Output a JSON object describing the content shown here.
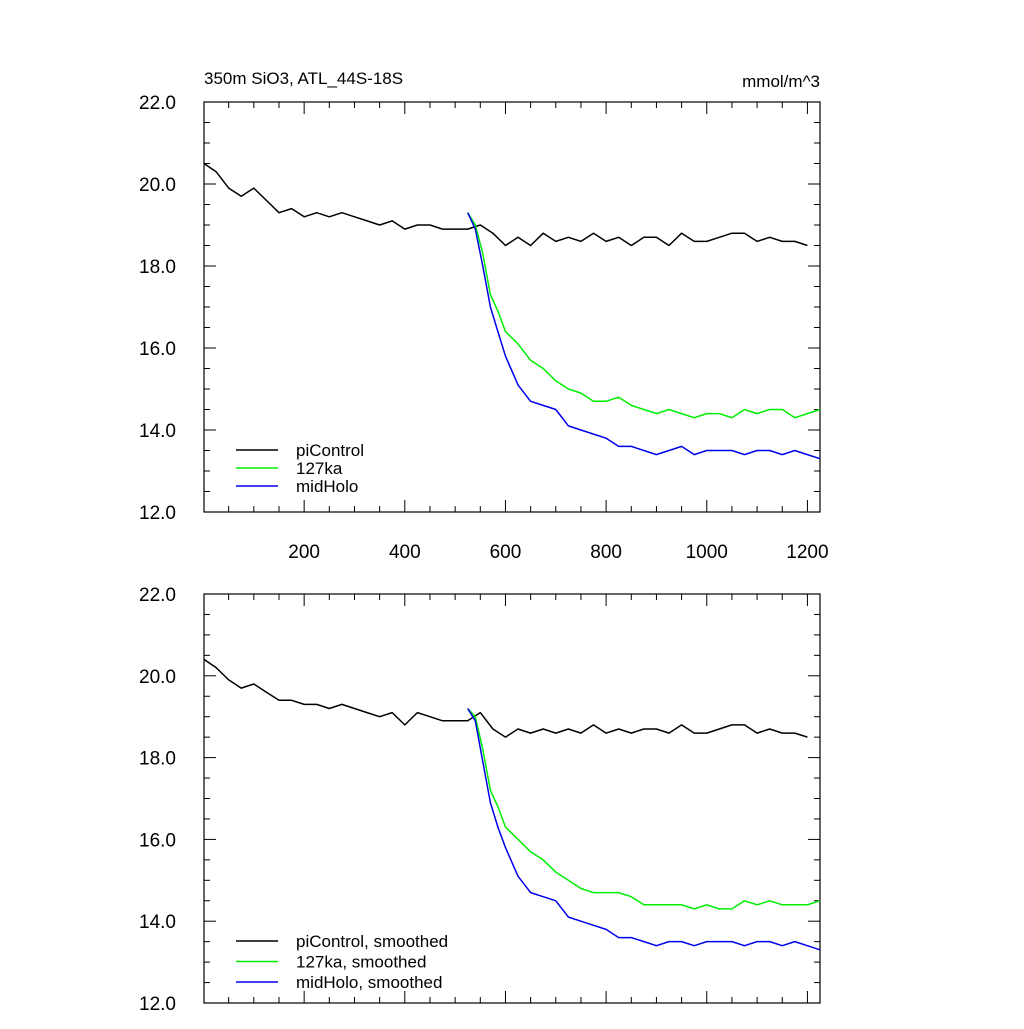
{
  "header": {
    "title": "350m SiO3, ATL_44S-18S",
    "units": "mmol/m^3"
  },
  "colors": {
    "piControl": "#000000",
    "127ka": "#00ee00",
    "midHolo": "#0000ee"
  },
  "chart_data": [
    {
      "type": "line",
      "title": "350m SiO3, ATL_44S-18S",
      "units": "mmol/m^3",
      "xlim": [
        1,
        1225
      ],
      "ylim": [
        12,
        22
      ],
      "x_ticks": [
        200,
        400,
        600,
        800,
        1000,
        1200
      ],
      "x_tick_labels": [
        "200",
        "400",
        "600",
        "800",
        "1000",
        "1200"
      ],
      "y_ticks": [
        12,
        14,
        16,
        18,
        20,
        22
      ],
      "y_tick_labels": [
        "12.0",
        "14.0",
        "16.0",
        "18.0",
        "20.0",
        "22.0"
      ],
      "grid": false,
      "legend_position": "bottom-left",
      "series": [
        {
          "name": "piControl",
          "color": "#000000",
          "x": [
            1,
            25,
            50,
            75,
            100,
            125,
            150,
            175,
            200,
            225,
            250,
            275,
            300,
            325,
            350,
            375,
            400,
            425,
            450,
            475,
            500,
            525,
            550,
            575,
            600,
            625,
            650,
            675,
            700,
            725,
            750,
            775,
            800,
            825,
            850,
            875,
            900,
            925,
            950,
            975,
            1000,
            1025,
            1050,
            1075,
            1100,
            1125,
            1150,
            1175,
            1200
          ],
          "y": [
            20.5,
            20.3,
            19.9,
            19.7,
            19.9,
            19.6,
            19.3,
            19.4,
            19.2,
            19.3,
            19.2,
            19.3,
            19.2,
            19.1,
            19.0,
            19.1,
            18.9,
            19.0,
            19.0,
            18.9,
            18.9,
            18.9,
            19.0,
            18.8,
            18.5,
            18.7,
            18.5,
            18.8,
            18.6,
            18.7,
            18.6,
            18.8,
            18.6,
            18.7,
            18.5,
            18.7,
            18.7,
            18.5,
            18.8,
            18.6,
            18.6,
            18.7,
            18.8,
            18.8,
            18.6,
            18.7,
            18.6,
            18.6,
            18.5
          ]
        },
        {
          "name": "127ka",
          "color": "#00ee00",
          "x": [
            525,
            540,
            555,
            570,
            585,
            600,
            625,
            650,
            675,
            700,
            725,
            750,
            775,
            800,
            825,
            850,
            875,
            900,
            925,
            950,
            975,
            1000,
            1025,
            1050,
            1075,
            1100,
            1125,
            1150,
            1175,
            1200,
            1225
          ],
          "y": [
            19.3,
            19.0,
            18.3,
            17.3,
            16.9,
            16.4,
            16.1,
            15.7,
            15.5,
            15.2,
            15.0,
            14.9,
            14.7,
            14.7,
            14.8,
            14.6,
            14.5,
            14.4,
            14.5,
            14.4,
            14.3,
            14.4,
            14.4,
            14.3,
            14.5,
            14.4,
            14.5,
            14.5,
            14.3,
            14.4,
            14.5
          ]
        },
        {
          "name": "midHolo",
          "color": "#0000ee",
          "x": [
            525,
            540,
            555,
            570,
            585,
            600,
            625,
            650,
            675,
            700,
            725,
            750,
            775,
            800,
            825,
            850,
            875,
            900,
            925,
            950,
            975,
            1000,
            1025,
            1050,
            1075,
            1100,
            1125,
            1150,
            1175,
            1200,
            1225
          ],
          "y": [
            19.3,
            18.9,
            18.0,
            17.0,
            16.4,
            15.8,
            15.1,
            14.7,
            14.6,
            14.5,
            14.1,
            14.0,
            13.9,
            13.8,
            13.6,
            13.6,
            13.5,
            13.4,
            13.5,
            13.6,
            13.4,
            13.5,
            13.5,
            13.5,
            13.4,
            13.5,
            13.5,
            13.4,
            13.5,
            13.4,
            13.3
          ]
        }
      ]
    },
    {
      "type": "line",
      "xlim": [
        1,
        1225
      ],
      "ylim": [
        12,
        22
      ],
      "x_ticks": [
        200,
        400,
        600,
        800,
        1000,
        1200
      ],
      "y_ticks": [
        12,
        14,
        16,
        18,
        20,
        22
      ],
      "y_tick_labels": [
        "12.0",
        "14.0",
        "16.0",
        "18.0",
        "20.0",
        "22.0"
      ],
      "grid": false,
      "legend_position": "bottom-left",
      "series": [
        {
          "name": "piControl, smoothed",
          "color": "#000000",
          "x": [
            1,
            25,
            50,
            75,
            100,
            125,
            150,
            175,
            200,
            225,
            250,
            275,
            300,
            325,
            350,
            375,
            400,
            425,
            450,
            475,
            500,
            525,
            550,
            575,
            600,
            625,
            650,
            675,
            700,
            725,
            750,
            775,
            800,
            825,
            850,
            875,
            900,
            925,
            950,
            975,
            1000,
            1025,
            1050,
            1075,
            1100,
            1125,
            1150,
            1175,
            1200
          ],
          "y": [
            20.4,
            20.2,
            19.9,
            19.7,
            19.8,
            19.6,
            19.4,
            19.4,
            19.3,
            19.3,
            19.2,
            19.3,
            19.2,
            19.1,
            19.0,
            19.1,
            18.8,
            19.1,
            19.0,
            18.9,
            18.9,
            18.9,
            19.1,
            18.7,
            18.5,
            18.7,
            18.6,
            18.7,
            18.6,
            18.7,
            18.6,
            18.8,
            18.6,
            18.7,
            18.6,
            18.7,
            18.7,
            18.6,
            18.8,
            18.6,
            18.6,
            18.7,
            18.8,
            18.8,
            18.6,
            18.7,
            18.6,
            18.6,
            18.5
          ]
        },
        {
          "name": "127ka, smoothed",
          "color": "#00ee00",
          "x": [
            525,
            540,
            555,
            570,
            585,
            600,
            625,
            650,
            675,
            700,
            725,
            750,
            775,
            800,
            825,
            850,
            875,
            900,
            925,
            950,
            975,
            1000,
            1025,
            1050,
            1075,
            1100,
            1125,
            1150,
            1175,
            1200,
            1225
          ],
          "y": [
            19.2,
            19.0,
            18.2,
            17.2,
            16.8,
            16.3,
            16.0,
            15.7,
            15.5,
            15.2,
            15.0,
            14.8,
            14.7,
            14.7,
            14.7,
            14.6,
            14.4,
            14.4,
            14.4,
            14.4,
            14.3,
            14.4,
            14.3,
            14.3,
            14.5,
            14.4,
            14.5,
            14.4,
            14.4,
            14.4,
            14.5
          ]
        },
        {
          "name": "midHolo, smoothed",
          "color": "#0000ee",
          "x": [
            525,
            540,
            555,
            570,
            585,
            600,
            625,
            650,
            675,
            700,
            725,
            750,
            775,
            800,
            825,
            850,
            875,
            900,
            925,
            950,
            975,
            1000,
            1025,
            1050,
            1075,
            1100,
            1125,
            1150,
            1175,
            1200,
            1225
          ],
          "y": [
            19.2,
            18.9,
            17.9,
            16.9,
            16.3,
            15.8,
            15.1,
            14.7,
            14.6,
            14.5,
            14.1,
            14.0,
            13.9,
            13.8,
            13.6,
            13.6,
            13.5,
            13.4,
            13.5,
            13.5,
            13.4,
            13.5,
            13.5,
            13.5,
            13.4,
            13.5,
            13.5,
            13.4,
            13.5,
            13.4,
            13.3
          ]
        }
      ]
    }
  ]
}
